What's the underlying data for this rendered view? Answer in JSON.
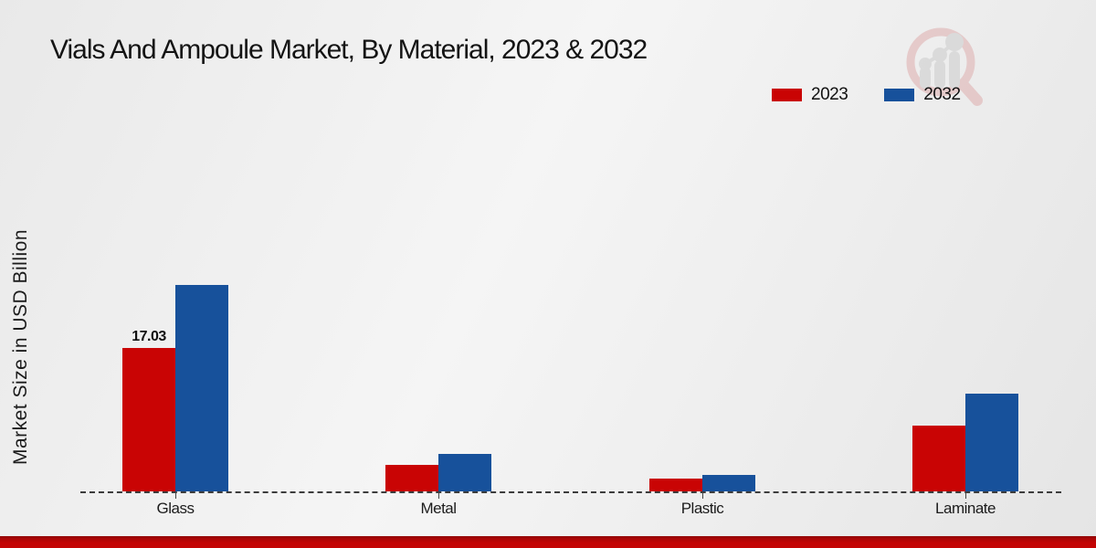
{
  "page": {
    "title": "Vials And Ampoule Market, By Material, 2023 & 2032"
  },
  "chart_data": {
    "type": "bar",
    "title": "Vials And Ampoule Market, By Material, 2023 & 2032",
    "xlabel": "",
    "ylabel": "Market Size in USD Billion",
    "categories": [
      "Glass",
      "Metal",
      "Plastic",
      "Laminate"
    ],
    "series": [
      {
        "name": "2023",
        "color": "#c90404",
        "values": [
          17.03,
          3.1,
          1.5,
          7.85
        ]
      },
      {
        "name": "2032",
        "color": "#17519b",
        "values": [
          24.5,
          4.5,
          2.0,
          11.6
        ]
      }
    ],
    "annotations": [
      {
        "category": "Glass",
        "series": "2023",
        "text": "17.03"
      }
    ],
    "ylim": [
      0,
      25
    ],
    "grid": false,
    "legend_position": "top-right",
    "baseline_style": "dashed",
    "y_axis_ticks_visible": false
  },
  "branding": {
    "watermark_icon": "magnifier-bar-chart-logo",
    "watermark_ring_color": "#dda8a8",
    "watermark_bar_color": "#c9c9c9"
  },
  "footer": {
    "accent_color": "#c30404"
  }
}
